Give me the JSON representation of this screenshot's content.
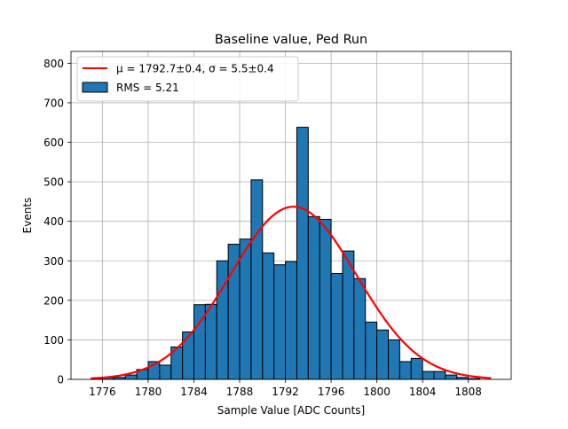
{
  "chart_data": {
    "type": "histogram",
    "title": "Baseline value, Ped Run",
    "xlabel": "Sample Value [ADC Counts]",
    "ylabel": "Events",
    "xlim": [
      1773.25,
      1811.75
    ],
    "ylim": [
      0,
      830
    ],
    "grid": true,
    "legend_position": "top-left",
    "x_ticks": [
      1776,
      1780,
      1784,
      1788,
      1792,
      1796,
      1800,
      1804,
      1808
    ],
    "y_ticks": [
      0,
      100,
      200,
      300,
      400,
      500,
      600,
      700,
      800
    ],
    "bin_width": 1,
    "bins": [
      {
        "x": 1775,
        "value": 2
      },
      {
        "x": 1776,
        "value": 5
      },
      {
        "x": 1777,
        "value": 5
      },
      {
        "x": 1778,
        "value": 11
      },
      {
        "x": 1779,
        "value": 25
      },
      {
        "x": 1780,
        "value": 45
      },
      {
        "x": 1781,
        "value": 36
      },
      {
        "x": 1782,
        "value": 82
      },
      {
        "x": 1783,
        "value": 120
      },
      {
        "x": 1784,
        "value": 189
      },
      {
        "x": 1785,
        "value": 190
      },
      {
        "x": 1786,
        "value": 300
      },
      {
        "x": 1787,
        "value": 342
      },
      {
        "x": 1788,
        "value": 355
      },
      {
        "x": 1789,
        "value": 505
      },
      {
        "x": 1790,
        "value": 320
      },
      {
        "x": 1791,
        "value": 290
      },
      {
        "x": 1792,
        "value": 298
      },
      {
        "x": 1793,
        "value": 638
      },
      {
        "x": 1794,
        "value": 412
      },
      {
        "x": 1795,
        "value": 405
      },
      {
        "x": 1796,
        "value": 268
      },
      {
        "x": 1797,
        "value": 325
      },
      {
        "x": 1798,
        "value": 255
      },
      {
        "x": 1799,
        "value": 145
      },
      {
        "x": 1800,
        "value": 125
      },
      {
        "x": 1801,
        "value": 100
      },
      {
        "x": 1802,
        "value": 45
      },
      {
        "x": 1803,
        "value": 53
      },
      {
        "x": 1804,
        "value": 20
      },
      {
        "x": 1805,
        "value": 20
      },
      {
        "x": 1806,
        "value": 11
      },
      {
        "x": 1807,
        "value": 5
      },
      {
        "x": 1808,
        "value": 2
      }
    ],
    "fit": {
      "type": "gaussian",
      "mu": 1792.7,
      "sigma": 5.5,
      "amplitude": 437,
      "x_range": [
        1775,
        1810
      ]
    },
    "series": [
      {
        "name": "μ = 1792.7±0.4, σ = 5.5±0.4",
        "kind": "fit-line",
        "color": "#ff0000"
      },
      {
        "name": "RMS = 5.21",
        "kind": "bars",
        "color": "#1f77b4"
      }
    ]
  }
}
